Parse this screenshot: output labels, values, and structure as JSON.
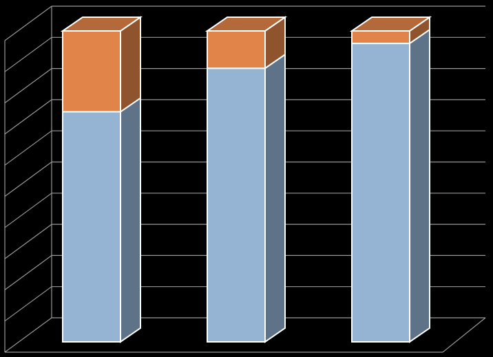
{
  "chart_data": {
    "type": "bar",
    "stacked": true,
    "three_d": true,
    "categories": [
      "",
      "",
      ""
    ],
    "series": [
      {
        "values": [
          74,
          88,
          96
        ]
      },
      {
        "values": [
          26,
          12,
          4
        ]
      }
    ],
    "ylim": [
      0,
      100
    ],
    "grid": true,
    "legend": "none",
    "colors": {
      "background": "#000000",
      "series_front": [
        "#95b4d3",
        "#e08449"
      ],
      "series_side": [
        "#5e7387",
        "#8f532d"
      ],
      "series_top": [
        "#b7cde3",
        "#b4693a"
      ],
      "edge": "#ffffff",
      "grid": "#9a9a9a"
    }
  }
}
